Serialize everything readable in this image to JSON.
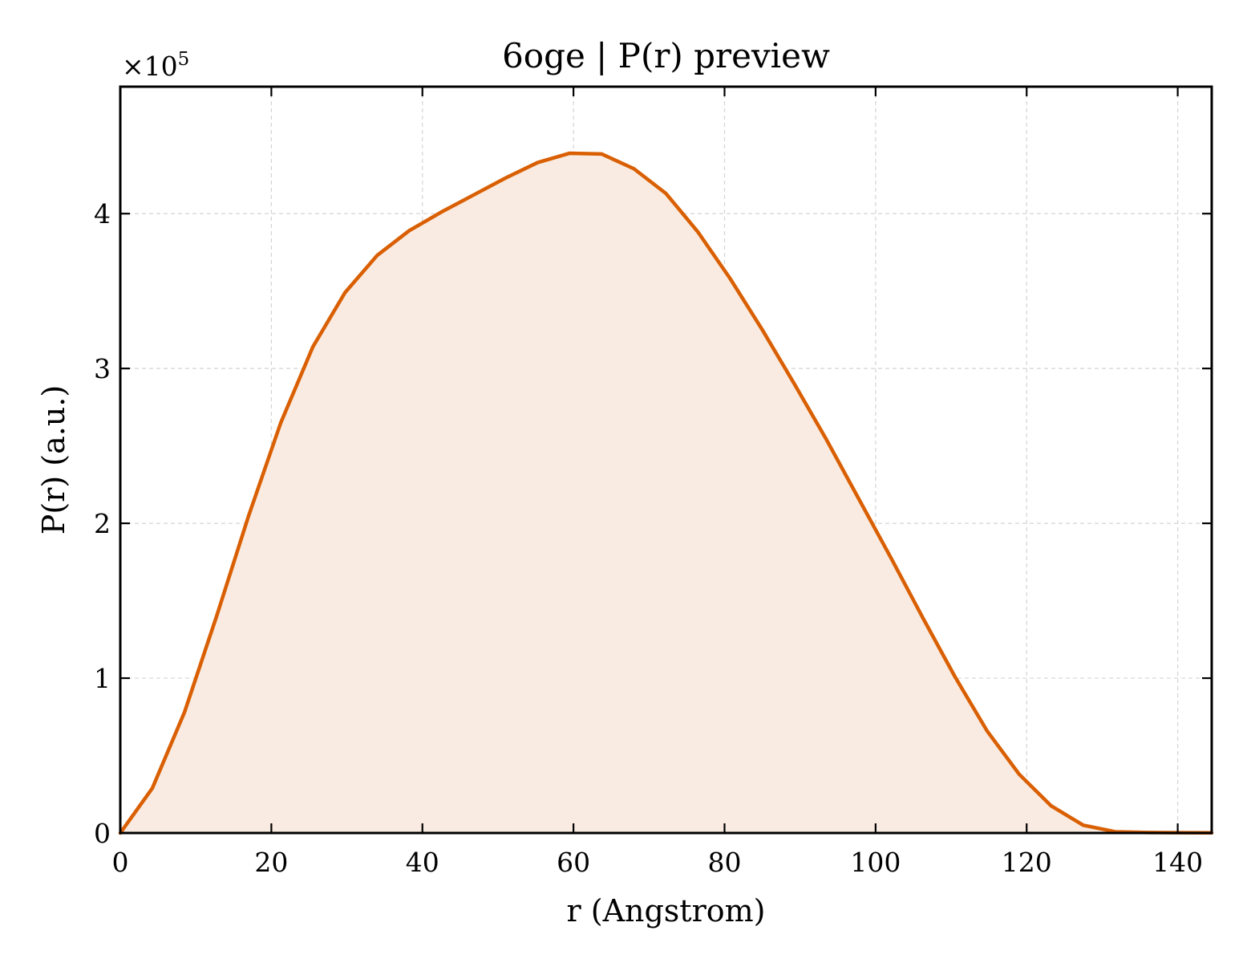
{
  "chart_data": {
    "type": "area",
    "title": "6oge | P(r) preview",
    "xlabel": "r (Angstrom)",
    "ylabel": "P(r) (a.u.)",
    "y_multiplier_label": "×10",
    "y_multiplier_exponent": "5",
    "y_scale": 100000,
    "xlim": [
      0,
      144.5
    ],
    "ylim": [
      0,
      482000
    ],
    "xticks": [
      0,
      20,
      40,
      60,
      80,
      100,
      120,
      140
    ],
    "xtick_labels": [
      "0",
      "20",
      "40",
      "60",
      "80",
      "100",
      "120",
      "140"
    ],
    "yticks": [
      0,
      100000,
      200000,
      300000,
      400000
    ],
    "ytick_labels": [
      "0",
      "1",
      "2",
      "3",
      "4"
    ],
    "grid": true,
    "line_color": "#d95f02",
    "fill_color": "#f9ebe1",
    "series": [
      {
        "x": [
          0,
          4.25,
          8.5,
          12.75,
          17.0,
          21.25,
          25.5,
          29.75,
          34.0,
          38.25,
          42.5,
          46.75,
          51.0,
          55.25,
          59.5,
          63.75,
          68.0,
          72.25,
          76.5,
          80.75,
          85.0,
          89.25,
          93.5,
          97.75,
          102.0,
          106.25,
          110.5,
          114.75,
          119.0,
          123.25,
          127.5,
          131.75,
          136.0,
          140.25,
          144.5
        ],
        "y": [
          0,
          29000,
          78000,
          140000,
          205000,
          265000,
          314000,
          349000,
          373000,
          389000,
          401000,
          412000,
          423000,
          433000,
          439000,
          438500,
          429000,
          413000,
          388000,
          358000,
          325000,
          290000,
          254000,
          216000,
          178000,
          139000,
          101000,
          66000,
          38000,
          17500,
          5000,
          800,
          300,
          200,
          100
        ]
      }
    ]
  }
}
